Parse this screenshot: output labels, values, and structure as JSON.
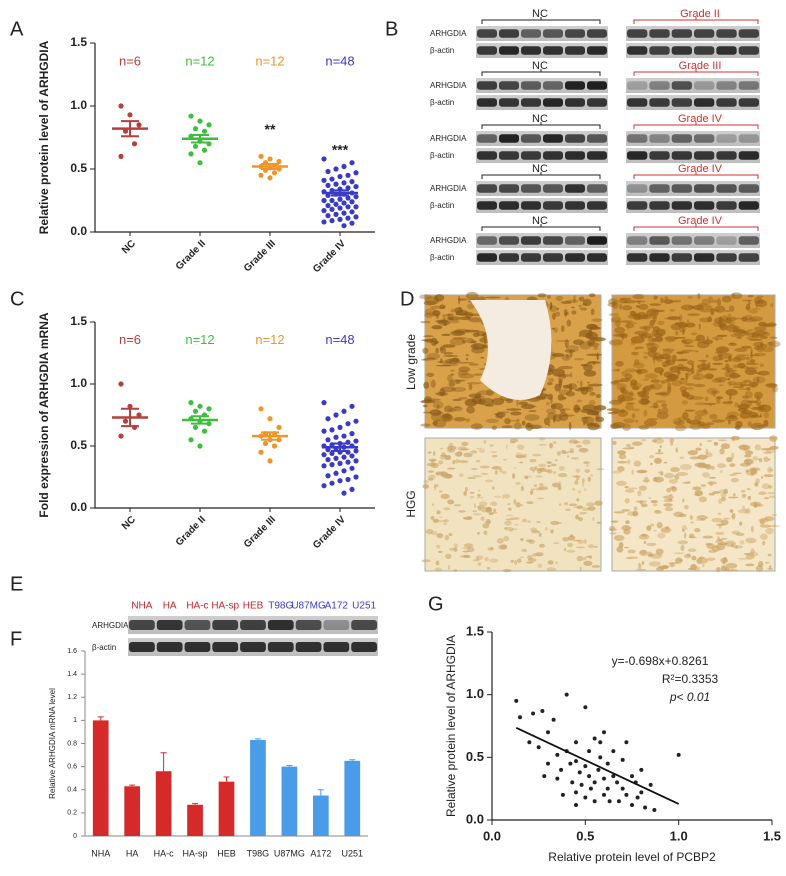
{
  "panels": {
    "labels": [
      "A",
      "B",
      "C",
      "D",
      "E",
      "F",
      "G"
    ],
    "blots_b": [
      {
        "left": "NC",
        "right": "Grade II",
        "rows": [
          "ARHGDIA",
          "β-actin"
        ]
      },
      {
        "left": "NC",
        "right": "Grade III",
        "rows": [
          "ARHGDIA",
          "β-actin"
        ]
      },
      {
        "left": "NC",
        "right": "Grade IV",
        "rows": [
          "ARHGDIA",
          "β-actin"
        ]
      },
      {
        "left": "NC",
        "right": "Grade IV",
        "rows": [
          "ARHGDIA",
          "β-actin"
        ]
      },
      {
        "left": "NC",
        "right": "Grade IV",
        "rows": [
          "ARHGDIA",
          "β-actin"
        ]
      }
    ],
    "panel_d": {
      "rows": [
        "Low grade",
        "HGG"
      ]
    },
    "panel_e": {
      "lanes": [
        "NHA",
        "HA",
        "HA-c",
        "HA-sp",
        "HEB",
        "T98G",
        "U87MG",
        "A172",
        "U251"
      ],
      "lane_colors": [
        "#c0282d",
        "#c0282d",
        "#c0282d",
        "#c0282d",
        "#c0282d",
        "#3b3bd0",
        "#3b3bd0",
        "#3b3bd0",
        "#3b3bd0"
      ],
      "rows": [
        "ARHGDIA",
        "β-actin"
      ]
    }
  },
  "chart_data": [
    {
      "type": "dot",
      "ylabel": "Relative protein level of ARHGDIA",
      "categories": [
        "NC",
        "Grade II",
        "Grade III",
        "Grade IV"
      ],
      "colors": [
        "#b5413e",
        "#3dbf3d",
        "#f0952a",
        "#3a3ac8"
      ],
      "n_labels": [
        "n=6",
        "n=12",
        "n=12",
        "n=48"
      ],
      "sig_labels": [
        null,
        null,
        "**",
        "***"
      ],
      "points": [
        [
          1.0,
          0.93,
          0.85,
          0.8,
          0.7,
          0.6
        ],
        [
          0.92,
          0.88,
          0.85,
          0.82,
          0.8,
          0.76,
          0.72,
          0.7,
          0.68,
          0.65,
          0.62,
          0.55
        ],
        [
          0.6,
          0.58,
          0.56,
          0.55,
          0.53,
          0.52,
          0.51,
          0.5,
          0.49,
          0.47,
          0.45,
          0.43
        ],
        [
          0.58,
          0.55,
          0.52,
          0.5,
          0.48,
          0.47,
          0.45,
          0.44,
          0.42,
          0.41,
          0.4,
          0.39,
          0.38,
          0.37,
          0.36,
          0.35,
          0.34,
          0.33,
          0.32,
          0.31,
          0.3,
          0.3,
          0.29,
          0.28,
          0.27,
          0.26,
          0.25,
          0.25,
          0.24,
          0.23,
          0.22,
          0.21,
          0.2,
          0.2,
          0.19,
          0.18,
          0.17,
          0.16,
          0.15,
          0.14,
          0.13,
          0.12,
          0.11,
          0.1,
          0.09,
          0.08,
          0.07,
          0.05
        ]
      ],
      "means": [
        0.82,
        0.74,
        0.52,
        0.31
      ],
      "errors": [
        0.06,
        0.03,
        0.02,
        0.02
      ],
      "ylim": [
        0,
        1.5
      ],
      "yticks": [
        {
          "value": 0,
          "label": "0.0"
        },
        0.5,
        {
          "value": 1,
          "label": "1.0"
        },
        1.5
      ]
    },
    {
      "type": "dot",
      "ylabel": "Fold expression of ARHGDIA mRNA",
      "categories": [
        "NC",
        "Grade II",
        "Grade III",
        "Grade IV"
      ],
      "colors": [
        "#b5413e",
        "#3dbf3d",
        "#f0952a",
        "#3a3ac8"
      ],
      "n_labels": [
        "n=6",
        "n=12",
        "n=12",
        "n=48"
      ],
      "points": [
        [
          1.0,
          0.82,
          0.75,
          0.7,
          0.65,
          0.58
        ],
        [
          0.85,
          0.82,
          0.8,
          0.78,
          0.75,
          0.72,
          0.7,
          0.68,
          0.65,
          0.62,
          0.55,
          0.5
        ],
        [
          0.8,
          0.72,
          0.65,
          0.6,
          0.6,
          0.58,
          0.55,
          0.55,
          0.52,
          0.5,
          0.45,
          0.38
        ],
        [
          0.85,
          0.82,
          0.78,
          0.75,
          0.72,
          0.7,
          0.68,
          0.65,
          0.63,
          0.62,
          0.6,
          0.58,
          0.57,
          0.55,
          0.54,
          0.53,
          0.52,
          0.51,
          0.5,
          0.5,
          0.49,
          0.48,
          0.47,
          0.46,
          0.45,
          0.45,
          0.44,
          0.43,
          0.42,
          0.41,
          0.4,
          0.39,
          0.38,
          0.37,
          0.36,
          0.35,
          0.34,
          0.32,
          0.3,
          0.28,
          0.26,
          0.25,
          0.23,
          0.22,
          0.2,
          0.18,
          0.15,
          0.12
        ]
      ],
      "means": [
        0.73,
        0.71,
        0.58,
        0.49
      ],
      "errors": [
        0.07,
        0.03,
        0.03,
        0.03
      ],
      "ylim": [
        0,
        1.5
      ],
      "yticks": [
        {
          "value": 0,
          "label": "0.0"
        },
        0.5,
        {
          "value": 1,
          "label": "1.0"
        },
        1.5
      ]
    },
    {
      "type": "bar",
      "ylabel": "Relative ARHGDIA mRNA level",
      "categories": [
        "NHA",
        "HA",
        "HA-c",
        "HA-sp",
        "HEB",
        "T98G",
        "U87MG",
        "A172",
        "U251"
      ],
      "values": [
        1.0,
        0.43,
        0.56,
        0.27,
        0.47,
        0.83,
        0.6,
        0.35,
        0.65
      ],
      "errors": [
        0.03,
        0.01,
        0.16,
        0.01,
        0.04,
        0.01,
        0.01,
        0.05,
        0.01
      ],
      "colors": [
        "#d42a2a",
        "#d42a2a",
        "#d42a2a",
        "#d42a2a",
        "#d42a2a",
        "#4a9be8",
        "#4a9be8",
        "#4a9be8",
        "#4a9be8"
      ],
      "ylim": [
        0,
        1.6
      ],
      "yticks": [
        0,
        0.2,
        0.4,
        0.6,
        0.8,
        1,
        1.2,
        1.4,
        1.6
      ]
    },
    {
      "type": "scatter",
      "xlabel": "Relative protein level of PCBP2",
      "ylabel": "Relative protein level of ARHGDIA",
      "annotations": [
        "y=-0.698x+0.8261",
        "R²=0.3353",
        "p< 0.01"
      ],
      "fit": {
        "slope": -0.698,
        "intercept": 0.8261,
        "x_range": [
          0.13,
          1.0
        ]
      },
      "x": [
        0.13,
        0.15,
        0.2,
        0.22,
        0.25,
        0.27,
        0.3,
        0.3,
        0.33,
        0.35,
        0.35,
        0.37,
        0.4,
        0.4,
        0.42,
        0.43,
        0.45,
        0.45,
        0.45,
        0.47,
        0.48,
        0.5,
        0.5,
        0.5,
        0.52,
        0.52,
        0.53,
        0.55,
        0.55,
        0.55,
        0.57,
        0.58,
        0.6,
        0.6,
        0.6,
        0.62,
        0.62,
        0.63,
        0.65,
        0.65,
        0.67,
        0.68,
        0.7,
        0.7,
        0.72,
        0.72,
        0.75,
        0.75,
        0.77,
        0.78,
        0.8,
        0.8,
        0.82,
        0.85,
        0.87,
        1.0,
        0.45,
        0.38,
        0.28,
        0.58
      ],
      "values": [
        0.95,
        0.82,
        0.62,
        0.85,
        0.58,
        0.87,
        0.7,
        0.45,
        0.8,
        0.52,
        0.33,
        0.4,
        1.0,
        0.55,
        0.45,
        0.3,
        0.22,
        0.47,
        0.62,
        0.38,
        0.28,
        0.9,
        0.43,
        0.18,
        0.35,
        0.55,
        0.25,
        0.65,
        0.3,
        0.15,
        0.4,
        0.5,
        0.7,
        0.33,
        0.2,
        0.45,
        0.25,
        0.15,
        0.55,
        0.35,
        0.3,
        0.15,
        0.48,
        0.25,
        0.62,
        0.2,
        0.35,
        0.12,
        0.3,
        0.18,
        0.4,
        0.22,
        0.1,
        0.28,
        0.08,
        0.52,
        0.12,
        0.2,
        0.35,
        0.62
      ],
      "color": "#222222",
      "xlim": [
        0,
        1.5
      ],
      "xticks": [
        {
          "value": 0,
          "label": "0.0"
        },
        0.5,
        {
          "value": 1,
          "label": "1.0"
        },
        1.5
      ],
      "ylim": [
        0,
        1.5
      ],
      "yticks": [
        {
          "value": 0,
          "label": "0.0"
        },
        0.5,
        {
          "value": 1,
          "label": "1.0"
        },
        1.5
      ]
    }
  ]
}
